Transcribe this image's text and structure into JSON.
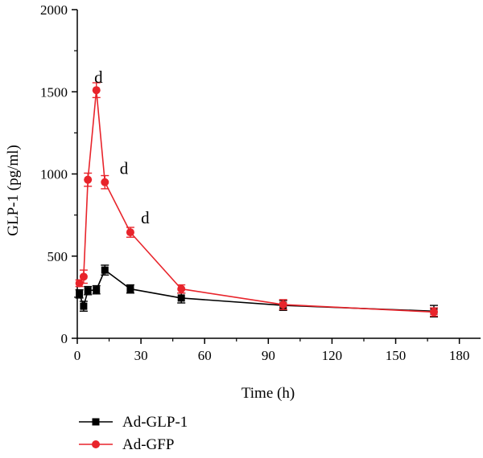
{
  "chart_data": {
    "type": "line",
    "xlabel": "Time (h)",
    "ylabel": "GLP-1 (pg/ml)",
    "xlim": [
      0,
      190
    ],
    "ylim": [
      0,
      2000
    ],
    "xticks": [
      0,
      30,
      60,
      90,
      120,
      150,
      180
    ],
    "yticks": [
      0,
      500,
      1000,
      1500,
      2000
    ],
    "grid": false,
    "legend_position": "bottom-left",
    "series": [
      {
        "name": "Ad-GLP-1",
        "color": "#000000",
        "marker": "square",
        "x": [
          1,
          3,
          5,
          9,
          13,
          25,
          49,
          97,
          168
        ],
        "y": [
          270,
          195,
          290,
          295,
          415,
          300,
          245,
          200,
          165
        ],
        "err": [
          25,
          30,
          25,
          25,
          30,
          25,
          30,
          30,
          35
        ]
      },
      {
        "name": "Ad-GFP",
        "color": "#e8242b",
        "marker": "circle",
        "x": [
          1,
          3,
          5,
          9,
          13,
          25,
          49,
          97,
          168
        ],
        "y": [
          335,
          375,
          965,
          1510,
          950,
          645,
          300,
          205,
          160
        ],
        "err": [
          20,
          40,
          40,
          45,
          40,
          30,
          25,
          30,
          25
        ]
      }
    ],
    "annotations": [
      {
        "text": "d",
        "x": 10,
        "y": 1555
      },
      {
        "text": "d",
        "x": 22,
        "y": 1000
      },
      {
        "text": "d",
        "x": 32,
        "y": 700
      }
    ]
  }
}
